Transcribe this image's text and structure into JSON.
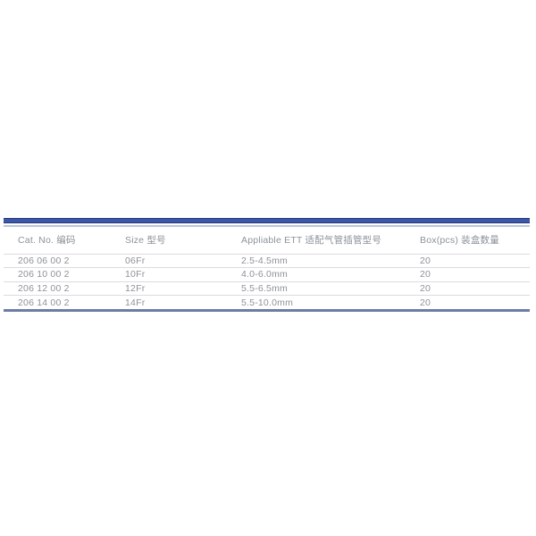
{
  "table": {
    "headers": [
      "Cat. No. 编码",
      "Size 型号",
      "Appliable ETT 适配气管插管型号",
      "Box(pcs) 装盒数量"
    ],
    "rows": [
      [
        "206 06 00 2",
        "06Fr",
        "2.5-4.5mm",
        "20"
      ],
      [
        "206 10 00 2",
        "10Fr",
        "4.0-6.0mm",
        "20"
      ],
      [
        "206 12 00 2",
        "12Fr",
        "5.5-6.5mm",
        "20"
      ],
      [
        "206 14 00 2",
        "14Fr",
        "5.5-10.0mm",
        "20"
      ]
    ]
  },
  "colors": {
    "accent_bar_dark": "#28386f",
    "accent_bar_blue": "#3a57ab",
    "accent_underline": "#b7c7dc",
    "bottom_border": "#6b7da6",
    "row_divider": "#dbdbde",
    "text": "#8d9298",
    "page_background": "#ffffff"
  }
}
